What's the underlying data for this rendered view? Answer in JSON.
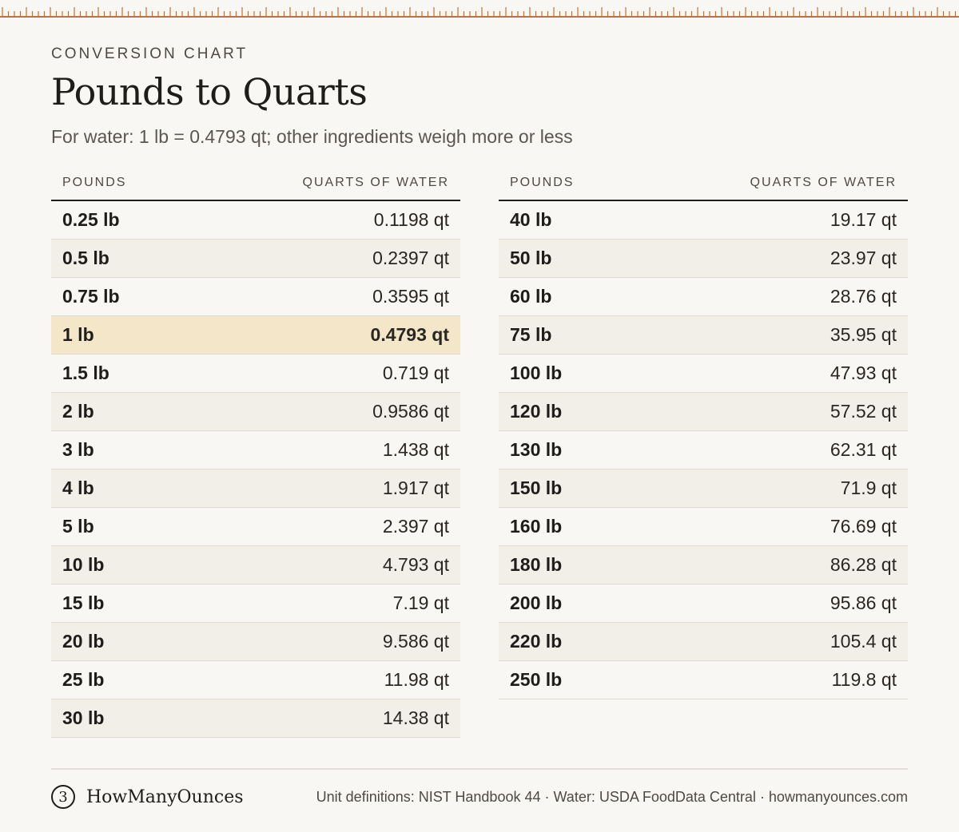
{
  "header": {
    "eyebrow": "CONVERSION CHART",
    "title": "Pounds to Quarts",
    "subtitle": "For water: 1 lb = 0.4793 qt; other ingredients weigh more or less"
  },
  "columns": {
    "pounds": "POUNDS",
    "quarts": "QUARTS OF WATER"
  },
  "left_table": [
    {
      "lb": "0.25 lb",
      "qt": "0.1198 qt"
    },
    {
      "lb": "0.5 lb",
      "qt": "0.2397 qt"
    },
    {
      "lb": "0.75 lb",
      "qt": "0.3595 qt"
    },
    {
      "lb": "1 lb",
      "qt": "0.4793 qt",
      "highlight": true
    },
    {
      "lb": "1.5 lb",
      "qt": "0.719 qt"
    },
    {
      "lb": "2 lb",
      "qt": "0.9586 qt"
    },
    {
      "lb": "3 lb",
      "qt": "1.438 qt"
    },
    {
      "lb": "4 lb",
      "qt": "1.917 qt"
    },
    {
      "lb": "5 lb",
      "qt": "2.397 qt"
    },
    {
      "lb": "10 lb",
      "qt": "4.793 qt"
    },
    {
      "lb": "15 lb",
      "qt": "7.19 qt"
    },
    {
      "lb": "20 lb",
      "qt": "9.586 qt"
    },
    {
      "lb": "25 lb",
      "qt": "11.98 qt"
    },
    {
      "lb": "30 lb",
      "qt": "14.38 qt"
    }
  ],
  "right_table": [
    {
      "lb": "40 lb",
      "qt": "19.17 qt"
    },
    {
      "lb": "50 lb",
      "qt": "23.97 qt"
    },
    {
      "lb": "60 lb",
      "qt": "28.76 qt"
    },
    {
      "lb": "75 lb",
      "qt": "35.95 qt"
    },
    {
      "lb": "100 lb",
      "qt": "47.93 qt"
    },
    {
      "lb": "120 lb",
      "qt": "57.52 qt"
    },
    {
      "lb": "130 lb",
      "qt": "62.31 qt"
    },
    {
      "lb": "150 lb",
      "qt": "71.9 qt"
    },
    {
      "lb": "160 lb",
      "qt": "76.69 qt"
    },
    {
      "lb": "180 lb",
      "qt": "86.28 qt"
    },
    {
      "lb": "200 lb",
      "qt": "95.86 qt"
    },
    {
      "lb": "220 lb",
      "qt": "105.4 qt"
    },
    {
      "lb": "250 lb",
      "qt": "119.8 qt"
    }
  ],
  "footer": {
    "logo_glyph": "3",
    "brand": "HowManyOunces",
    "sources": "Unit definitions: NIST Handbook 44 · Water: USDA FoodData Central · howmanyounces.com"
  },
  "colors": {
    "accent": "#c0713b",
    "background": "#f9f7f3",
    "highlight": "#f4e6c8"
  }
}
